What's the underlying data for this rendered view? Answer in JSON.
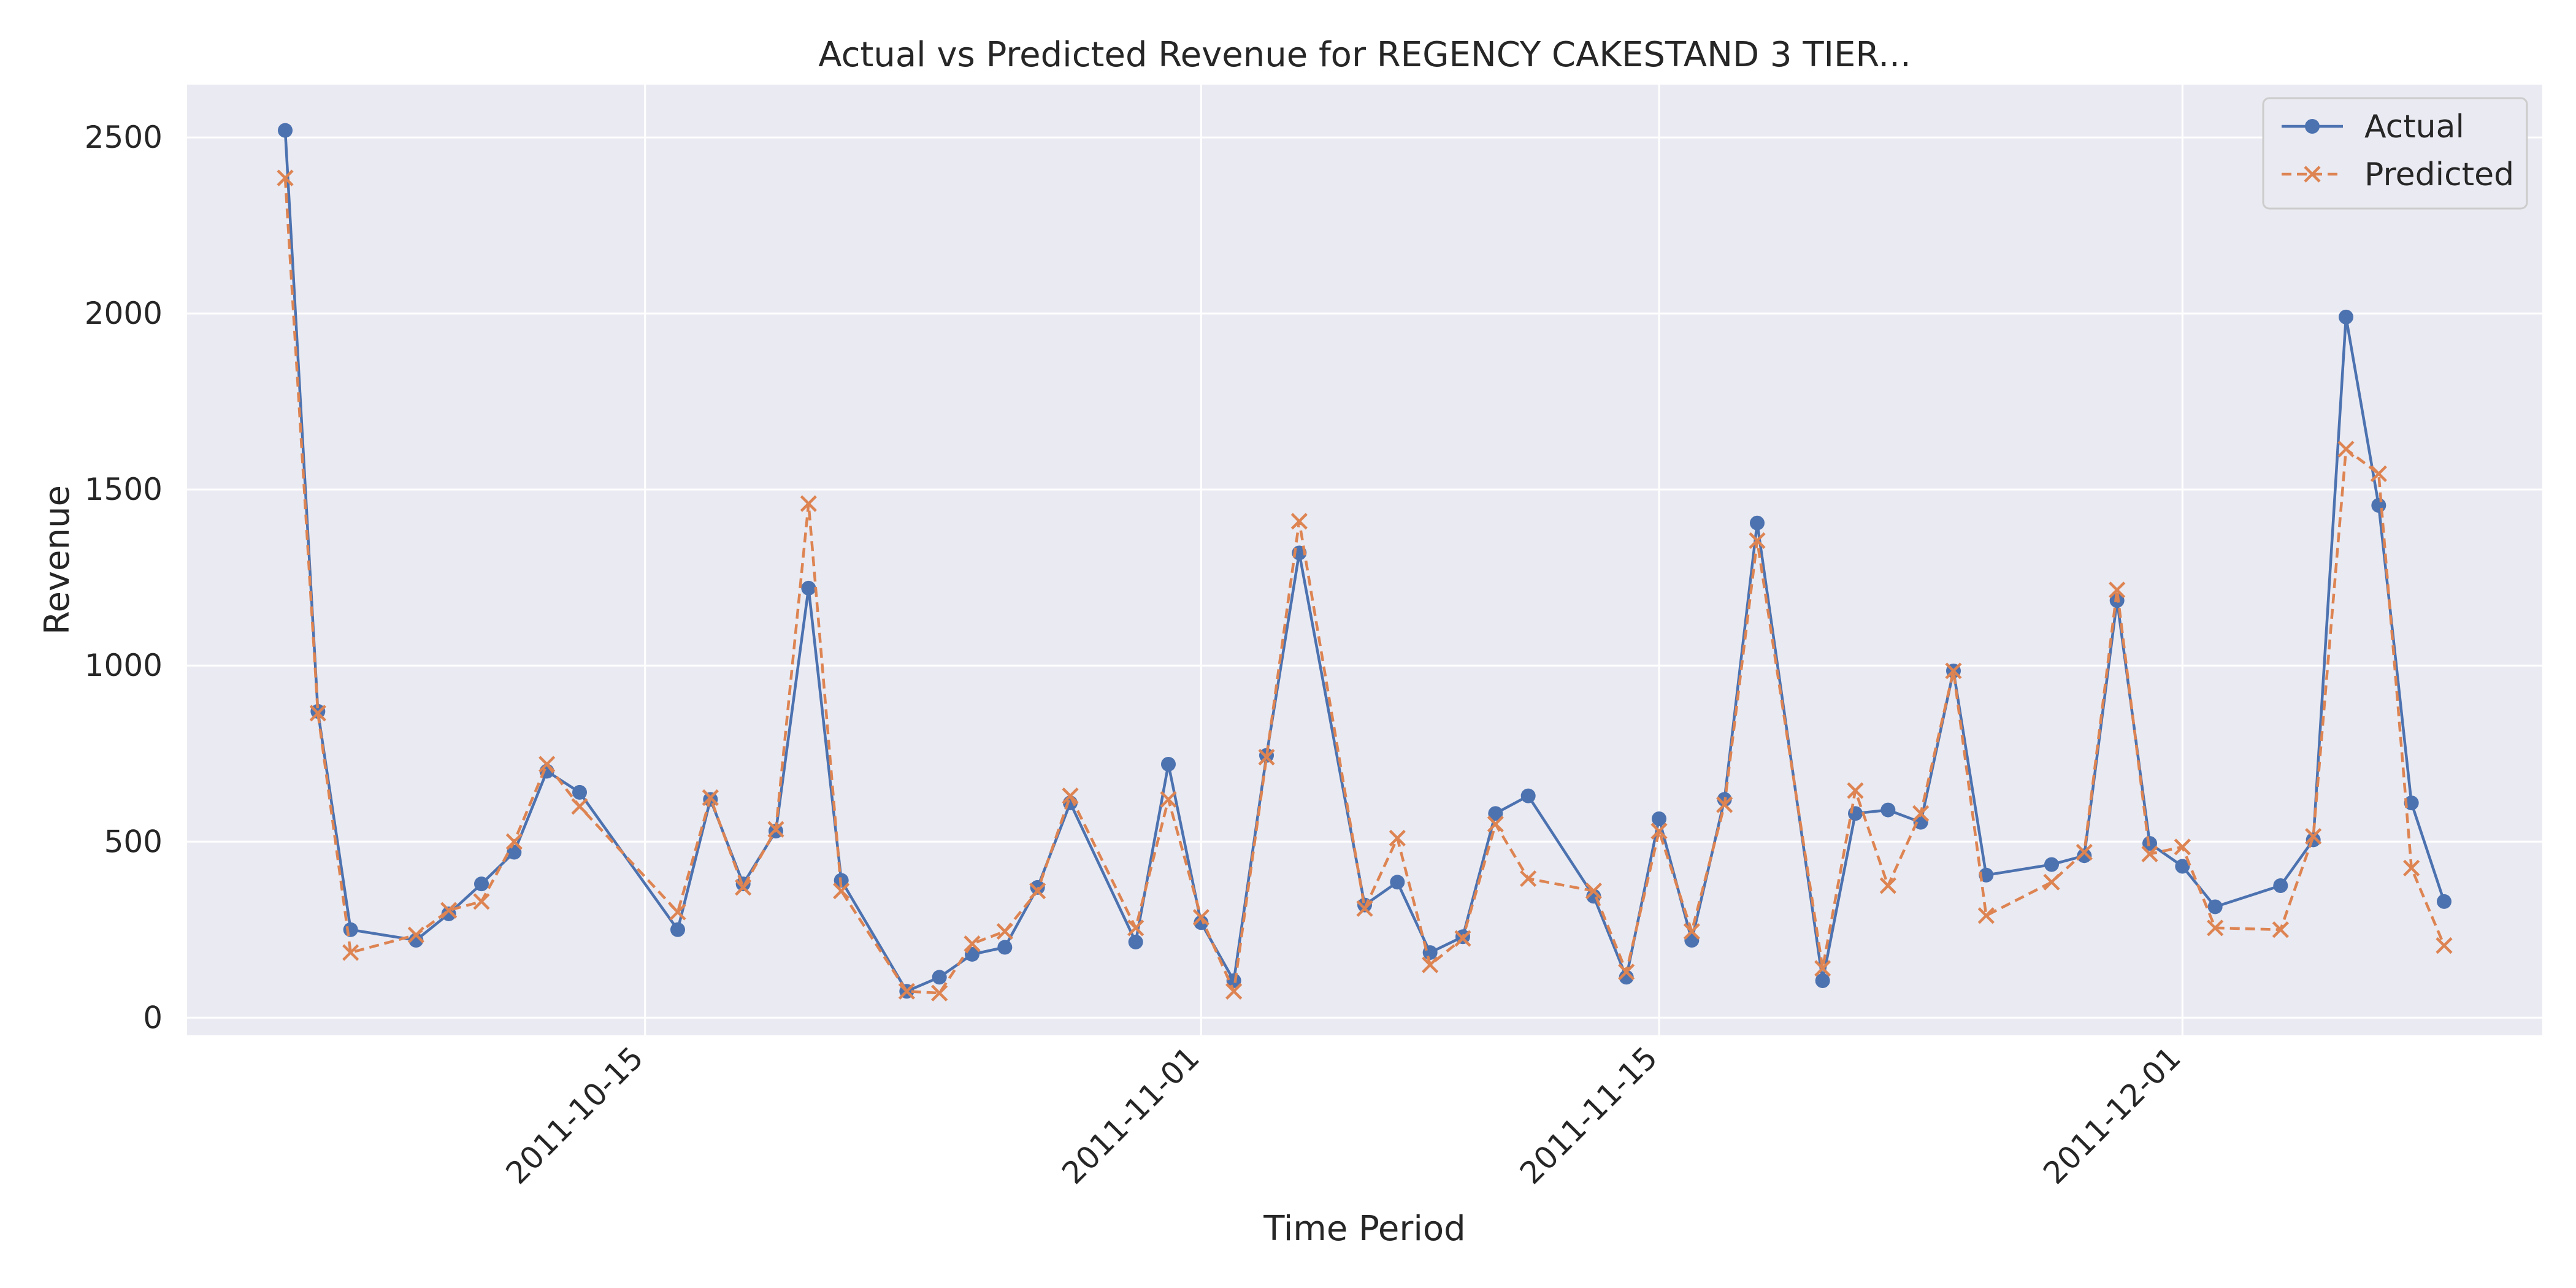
{
  "chart_data": {
    "type": "line",
    "title": "Actual vs Predicted Revenue for REGENCY CAKESTAND 3 TIER...",
    "xlabel": "Time Period",
    "ylabel": "Revenue",
    "x_ticks": [
      "2011-10-15",
      "2011-11-01",
      "2011-11-15",
      "2011-12-01"
    ],
    "y_ticks": [
      0,
      500,
      1000,
      1500,
      2000,
      2500
    ],
    "xlim": [
      "2011-10-01",
      "2011-12-12"
    ],
    "ylim": [
      -50,
      2650
    ],
    "grid": true,
    "legend_position": "top-right",
    "x": [
      "2011-10-04",
      "2011-10-05",
      "2011-10-06",
      "2011-10-08",
      "2011-10-09",
      "2011-10-10",
      "2011-10-11",
      "2011-10-12",
      "2011-10-13",
      "2011-10-16",
      "2011-10-17",
      "2011-10-18",
      "2011-10-19",
      "2011-10-20",
      "2011-10-21",
      "2011-10-23",
      "2011-10-24",
      "2011-10-25",
      "2011-10-26",
      "2011-10-27",
      "2011-10-28",
      "2011-10-30",
      "2011-10-31",
      "2011-11-01",
      "2011-11-02",
      "2011-11-03",
      "2011-11-04",
      "2011-11-06",
      "2011-11-07",
      "2011-11-08",
      "2011-11-09",
      "2011-11-10",
      "2011-11-11",
      "2011-11-13",
      "2011-11-14",
      "2011-11-15",
      "2011-11-16",
      "2011-11-17",
      "2011-11-18",
      "2011-11-20",
      "2011-11-21",
      "2011-11-22",
      "2011-11-23",
      "2011-11-24",
      "2011-11-25",
      "2011-11-27",
      "2011-11-28",
      "2011-11-29",
      "2011-11-30",
      "2011-12-01",
      "2011-12-02",
      "2011-12-04",
      "2011-12-05",
      "2011-12-06",
      "2011-12-07",
      "2011-12-08",
      "2011-12-09"
    ],
    "series": [
      {
        "name": "Actual",
        "color": "#4c72b0",
        "marker": "circle",
        "line_style": "solid",
        "values": [
          2520,
          870,
          250,
          220,
          295,
          380,
          470,
          700,
          640,
          250,
          620,
          380,
          530,
          1220,
          390,
          75,
          115,
          180,
          200,
          370,
          610,
          215,
          720,
          270,
          105,
          745,
          1320,
          320,
          385,
          185,
          230,
          580,
          630,
          345,
          115,
          565,
          220,
          620,
          1405,
          105,
          580,
          590,
          555,
          985,
          405,
          435,
          460,
          1185,
          495,
          430,
          315,
          375,
          505,
          1990,
          1455,
          610,
          330
        ]
      },
      {
        "name": "Predicted",
        "color": "#dd8452",
        "marker": "x",
        "line_style": "dashed",
        "values": [
          2385,
          865,
          185,
          235,
          305,
          330,
          500,
          720,
          600,
          300,
          625,
          370,
          535,
          1460,
          360,
          75,
          70,
          210,
          245,
          360,
          630,
          255,
          620,
          285,
          75,
          740,
          1410,
          310,
          510,
          150,
          225,
          550,
          395,
          360,
          130,
          530,
          245,
          605,
          1355,
          140,
          645,
          375,
          580,
          985,
          290,
          385,
          470,
          1215,
          465,
          485,
          255,
          250,
          515,
          1615,
          1545,
          425,
          205
        ]
      }
    ]
  }
}
